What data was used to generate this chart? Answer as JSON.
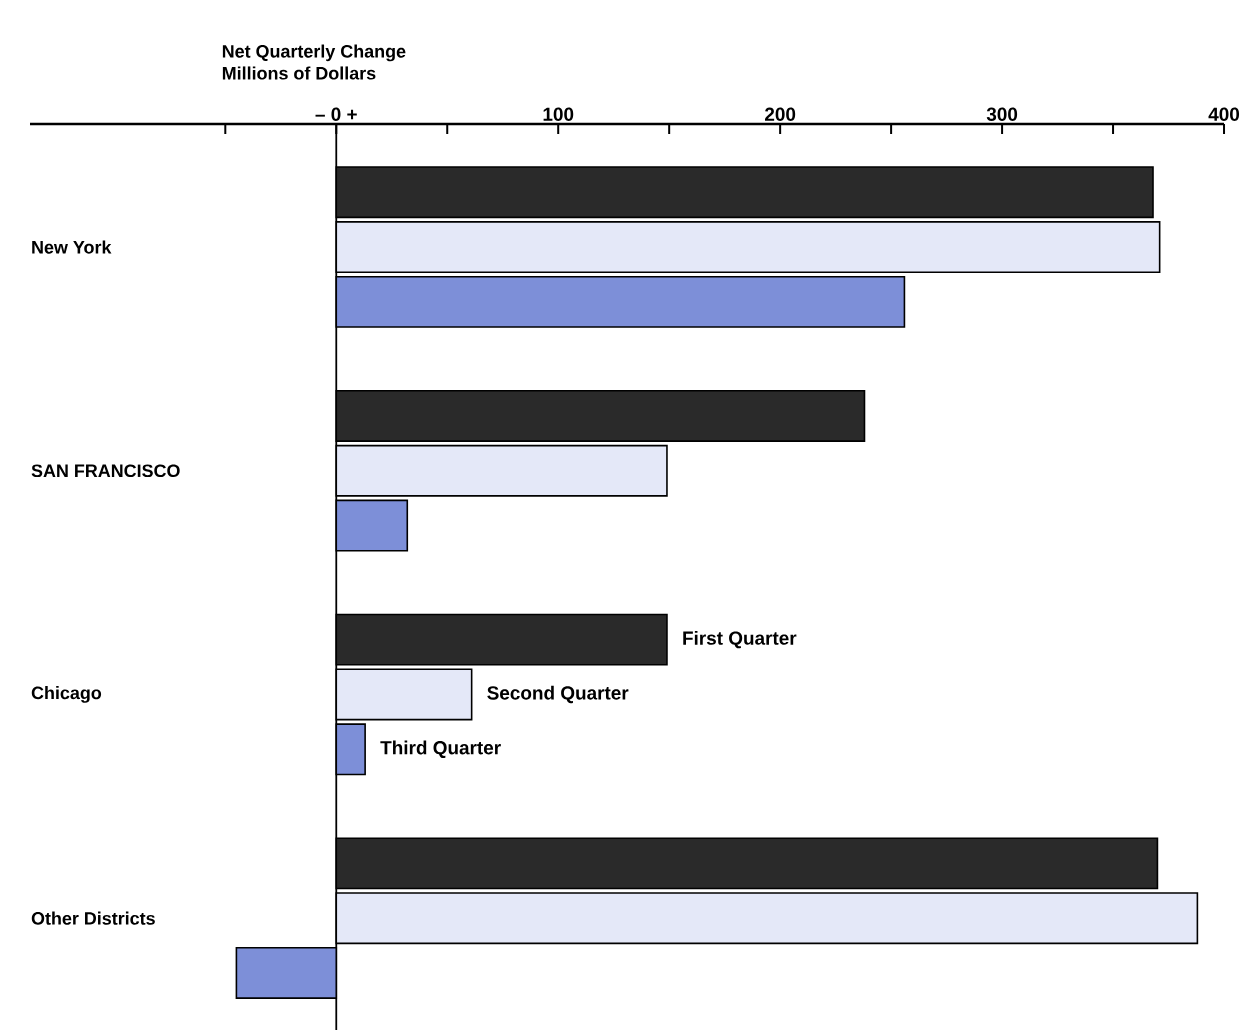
{
  "chart_data": {
    "type": "bar",
    "orientation": "horizontal",
    "title": "Net Quarterly Change",
    "subtitle": "Millions of Dollars",
    "categories": [
      "New York",
      "SAN FRANCISCO",
      "Chicago",
      "Other Districts"
    ],
    "series": [
      {
        "name": "First Quarter",
        "color": "#2a2a2a",
        "values": [
          368,
          238,
          149,
          370
        ]
      },
      {
        "name": "Second Quarter",
        "color": "#e4e8f8",
        "values": [
          371,
          149,
          61,
          388
        ]
      },
      {
        "name": "Third Quarter",
        "color": "#7d8fd8",
        "values": [
          256,
          32,
          13,
          -45
        ]
      }
    ],
    "xlim": [
      -138,
      400
    ],
    "xticks": [
      {
        "value": -50,
        "label": null
      },
      {
        "value": 0,
        "label": "– 0 +"
      },
      {
        "value": 50,
        "label": null
      },
      100,
      {
        "value": 150,
        "label": null
      },
      200,
      {
        "value": 250,
        "label": null
      },
      300,
      {
        "value": 350,
        "label": null
      },
      400
    ]
  }
}
